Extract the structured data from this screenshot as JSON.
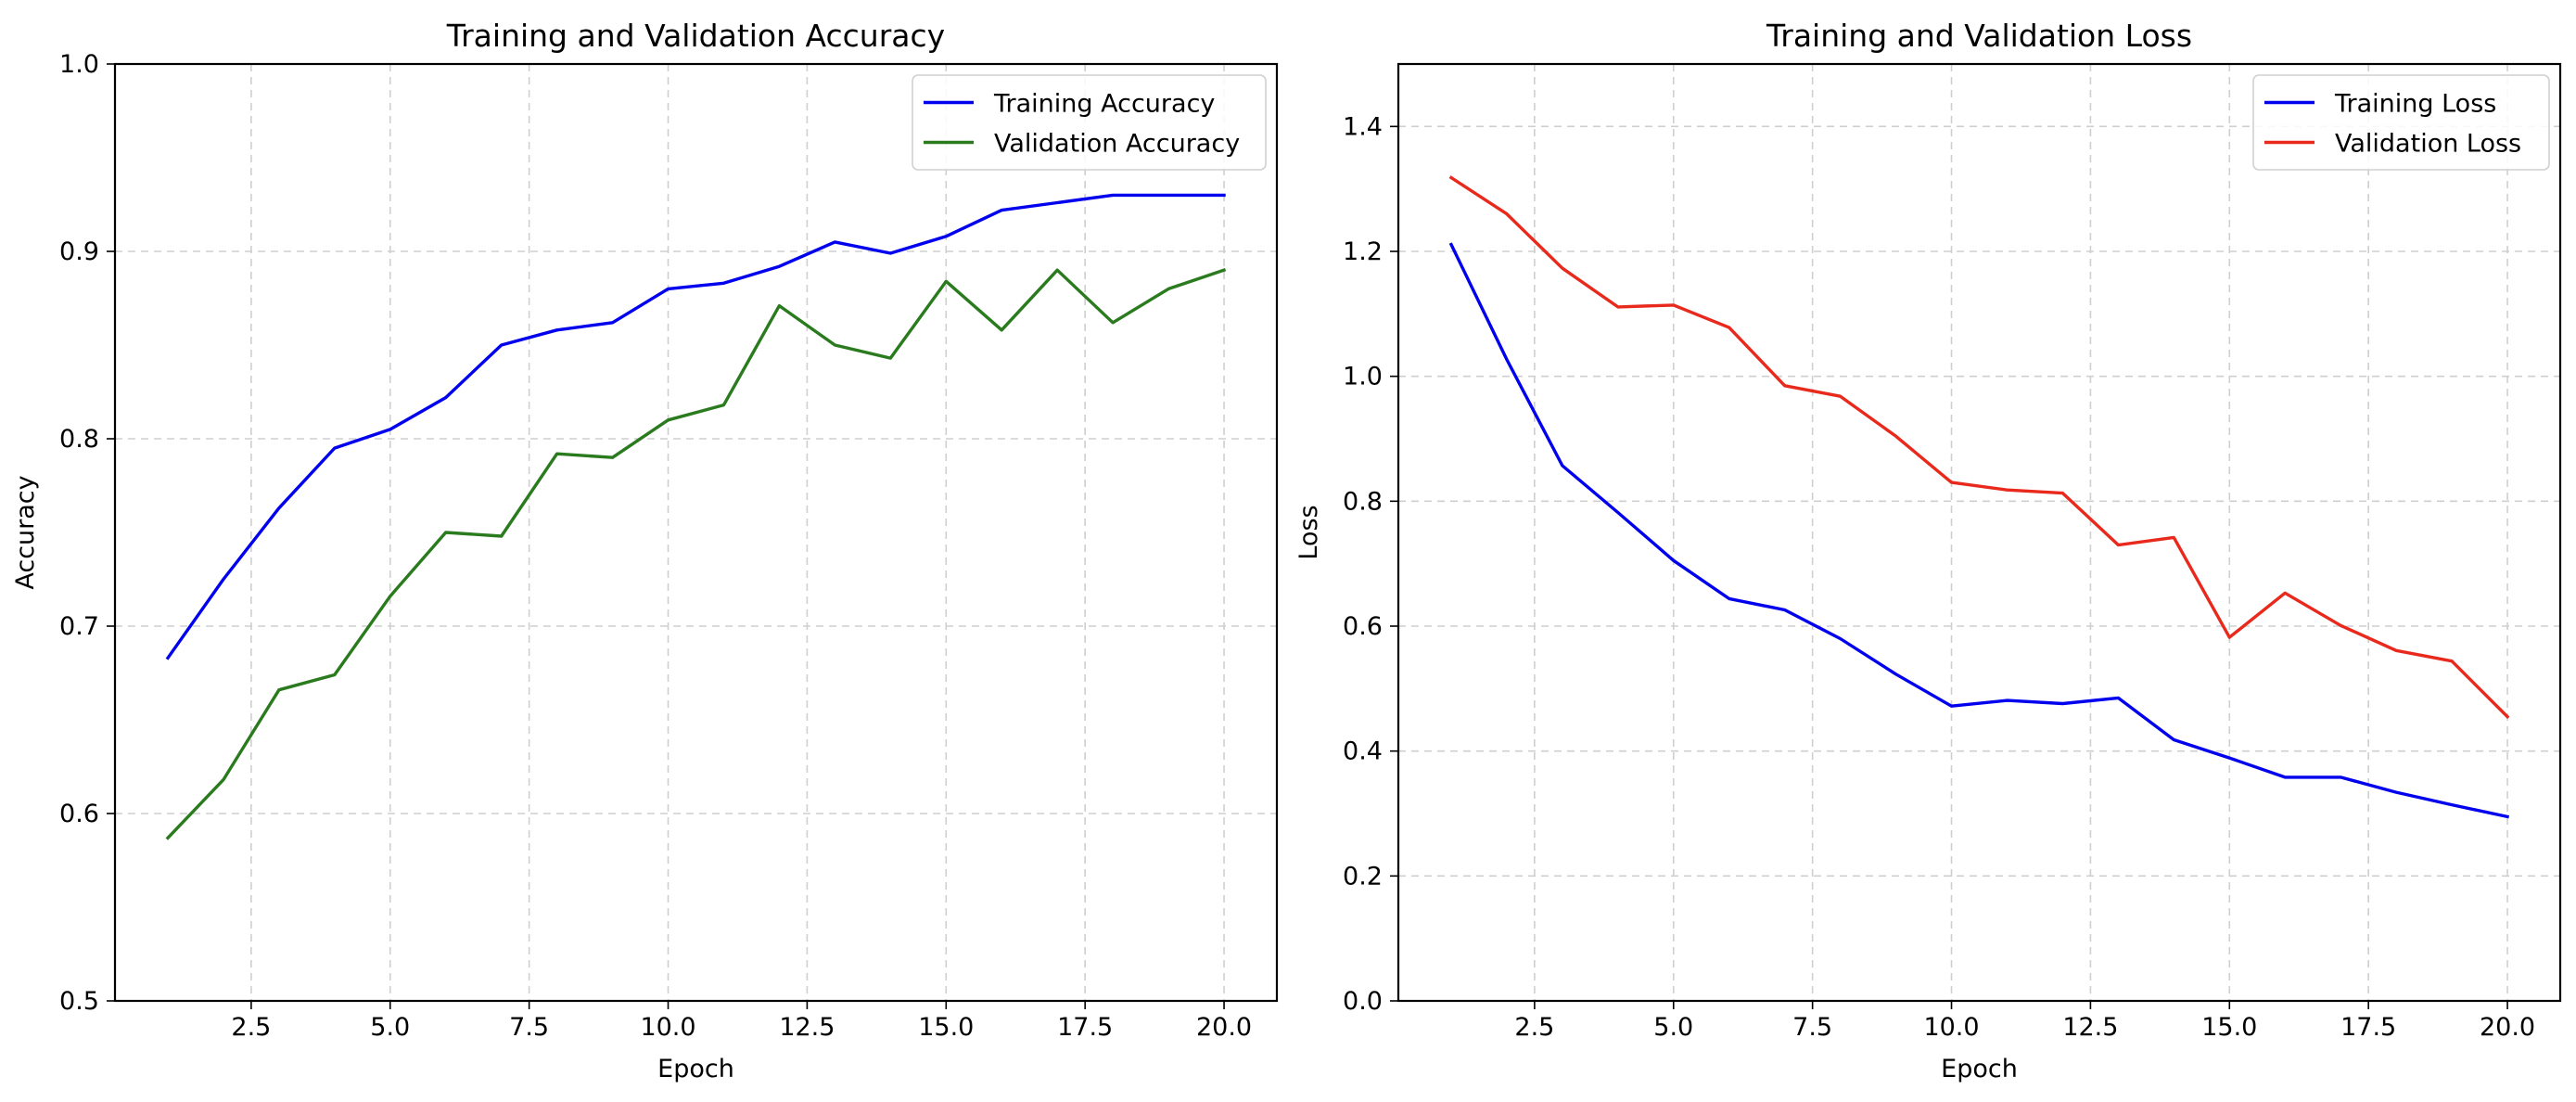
{
  "chart_data": [
    {
      "type": "line",
      "title": "Training and Validation Accuracy",
      "xlabel": "Epoch",
      "ylabel": "Accuracy",
      "xlim": [
        0.05,
        20.95
      ],
      "ylim": [
        0.5,
        1.0
      ],
      "xticks": [
        2.5,
        5.0,
        7.5,
        10.0,
        12.5,
        15.0,
        17.5,
        20.0
      ],
      "xtick_labels": [
        "2.5",
        "5.0",
        "7.5",
        "10.0",
        "12.5",
        "15.0",
        "17.5",
        "20.0"
      ],
      "yticks": [
        0.5,
        0.6,
        0.7,
        0.8,
        0.9,
        1.0
      ],
      "ytick_labels": [
        "0.5",
        "0.6",
        "0.7",
        "0.8",
        "0.9",
        "1.0"
      ],
      "grid": true,
      "legend_position": "top-right",
      "x": [
        1,
        2,
        3,
        4,
        5,
        6,
        7,
        8,
        9,
        10,
        11,
        12,
        13,
        14,
        15,
        16,
        17,
        18,
        19,
        20
      ],
      "series": [
        {
          "name": "Training Accuracy",
          "color": "#0000ee",
          "values": [
            0.683,
            0.725,
            0.763,
            0.795,
            0.805,
            0.822,
            0.85,
            0.858,
            0.862,
            0.88,
            0.883,
            0.892,
            0.905,
            0.899,
            0.908,
            0.922,
            0.926,
            0.93,
            0.93,
            0.93
          ]
        },
        {
          "name": "Validation Accuracy",
          "color": "#2a7a1e",
          "values": [
            0.587,
            0.618,
            0.666,
            0.674,
            0.716,
            0.75,
            0.748,
            0.792,
            0.79,
            0.81,
            0.818,
            0.871,
            0.85,
            0.843,
            0.884,
            0.858,
            0.89,
            0.862,
            0.88,
            0.89
          ]
        }
      ]
    },
    {
      "type": "line",
      "title": "Training and Validation Loss",
      "xlabel": "Epoch",
      "ylabel": "Loss",
      "xlim": [
        0.05,
        20.95
      ],
      "ylim": [
        0.0,
        1.5
      ],
      "xticks": [
        2.5,
        5.0,
        7.5,
        10.0,
        12.5,
        15.0,
        17.5,
        20.0
      ],
      "xtick_labels": [
        "2.5",
        "5.0",
        "7.5",
        "10.0",
        "12.5",
        "15.0",
        "17.5",
        "20.0"
      ],
      "yticks": [
        0.0,
        0.2,
        0.4,
        0.6,
        0.8,
        1.0,
        1.2,
        1.4
      ],
      "ytick_labels": [
        "0.0",
        "0.2",
        "0.4",
        "0.6",
        "0.8",
        "1.0",
        "1.2",
        "1.4"
      ],
      "grid": true,
      "legend_position": "top-right",
      "x": [
        1,
        2,
        3,
        4,
        5,
        6,
        7,
        8,
        9,
        10,
        11,
        12,
        13,
        14,
        15,
        16,
        17,
        18,
        19,
        20
      ],
      "series": [
        {
          "name": "Training Loss",
          "color": "#0000ee",
          "values": [
            1.211,
            1.027,
            0.857,
            0.782,
            0.705,
            0.644,
            0.626,
            0.58,
            0.523,
            0.472,
            0.481,
            0.476,
            0.485,
            0.418,
            0.389,
            0.358,
            0.358,
            0.334,
            0.314,
            0.295
          ]
        },
        {
          "name": "Validation Loss",
          "color": "#e8291c",
          "values": [
            1.318,
            1.26,
            1.173,
            1.111,
            1.114,
            1.078,
            0.985,
            0.968,
            0.904,
            0.83,
            0.818,
            0.813,
            0.73,
            0.742,
            0.582,
            0.653,
            0.601,
            0.561,
            0.544,
            0.455
          ]
        }
      ]
    }
  ]
}
